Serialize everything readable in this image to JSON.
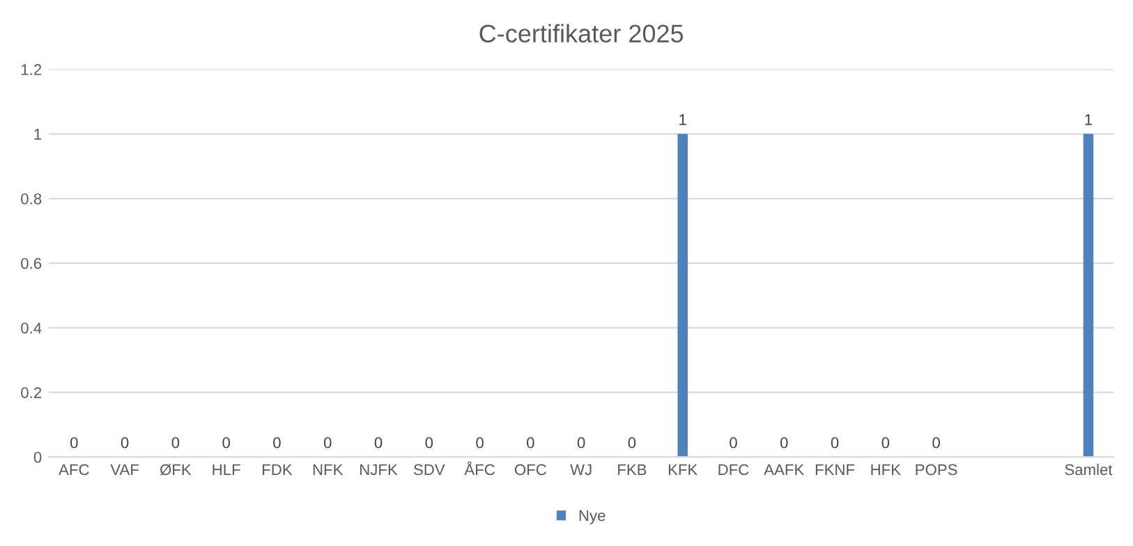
{
  "chart_data": {
    "type": "bar",
    "title": "C-certifikater 2025",
    "categories": [
      "AFC",
      "VAF",
      "ØFK",
      "HLF",
      "FDK",
      "NFK",
      "NJFK",
      "SDV",
      "ÅFC",
      "OFC",
      "WJ",
      "FKB",
      "KFK",
      "DFC",
      "AAFK",
      "FKNF",
      "HFK",
      "POPS",
      null,
      null,
      "Samlet"
    ],
    "series": [
      {
        "name": "Nye",
        "color": "#4f81bd",
        "values": [
          0,
          0,
          0,
          0,
          0,
          0,
          0,
          0,
          0,
          0,
          0,
          0,
          1,
          0,
          0,
          0,
          0,
          0,
          null,
          null,
          1
        ]
      }
    ],
    "ylim": [
      0,
      1.2
    ],
    "yticks": [
      0,
      0.2,
      0.4,
      0.6,
      0.8,
      1,
      1.2
    ],
    "grid": "y",
    "legend": "bottom",
    "data_labels": true
  }
}
